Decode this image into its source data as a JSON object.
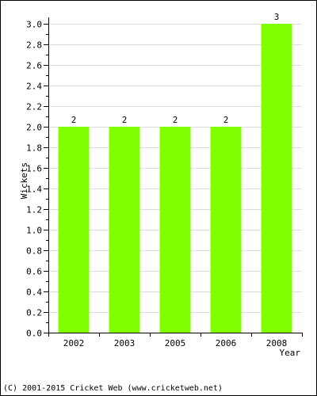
{
  "chart_data": {
    "type": "bar",
    "categories": [
      "2002",
      "2003",
      "2005",
      "2006",
      "2008"
    ],
    "values": [
      2,
      2,
      2,
      2,
      3
    ],
    "data_labels": [
      "2",
      "2",
      "2",
      "2",
      "3"
    ],
    "title": "",
    "xlabel": "Year",
    "ylabel": "Wickets",
    "ylim": [
      0,
      3.0
    ],
    "yticks": [
      "0.0",
      "0.2",
      "0.4",
      "0.6",
      "0.8",
      "1.0",
      "1.2",
      "1.4",
      "1.6",
      "1.8",
      "2.0",
      "2.2",
      "2.4",
      "2.6",
      "2.8",
      "3.0"
    ],
    "grid": true,
    "bar_color": "#80ff00",
    "grid_color": "#dddddd"
  },
  "footer": {
    "copyright": "(C) 2001-2015 Cricket Web (www.cricketweb.net)"
  }
}
